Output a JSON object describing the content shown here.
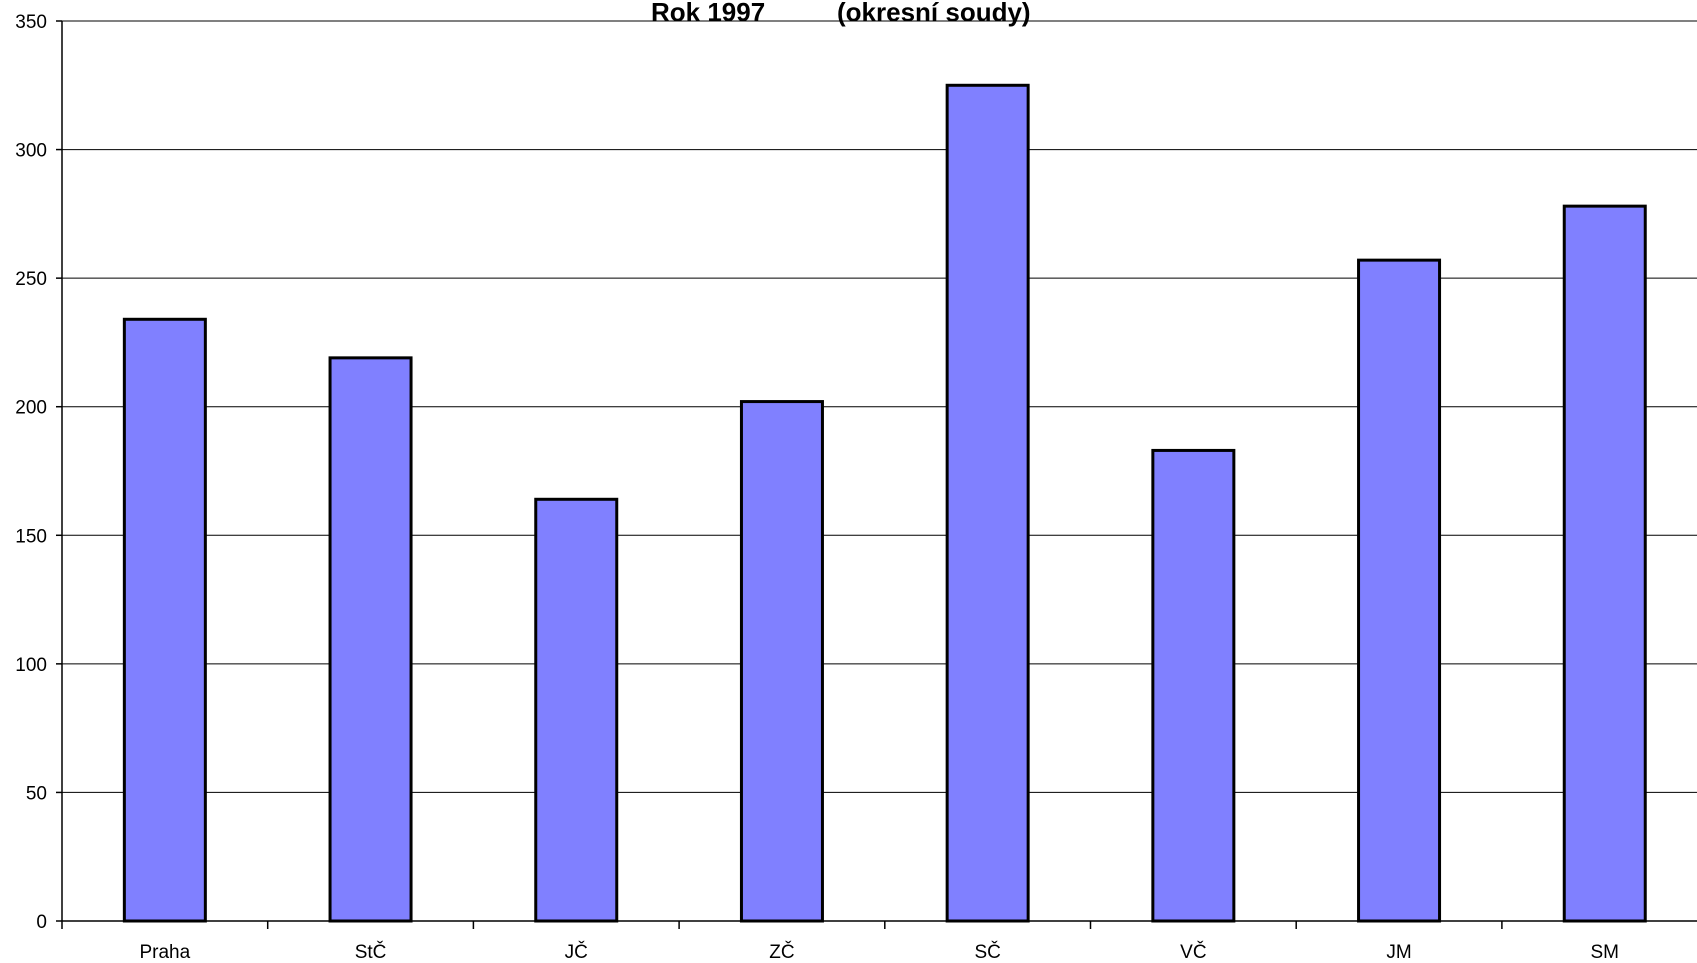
{
  "chart_data": {
    "type": "bar",
    "title_part1": "Rok 1997",
    "title_part2": "(okresní soudy)",
    "categories": [
      "Praha",
      "StČ",
      "JČ",
      "ZČ",
      "SČ",
      "VČ",
      "JM",
      "SM"
    ],
    "values": [
      234,
      219,
      164,
      202,
      325,
      183,
      257,
      278
    ],
    "ylim": [
      0,
      350
    ],
    "yticks": [
      "0",
      "50",
      "100",
      "150",
      "200",
      "250",
      "300",
      "350"
    ],
    "grid": true,
    "bar_color": "#8080ff",
    "bar_edge_color": "#000000"
  }
}
